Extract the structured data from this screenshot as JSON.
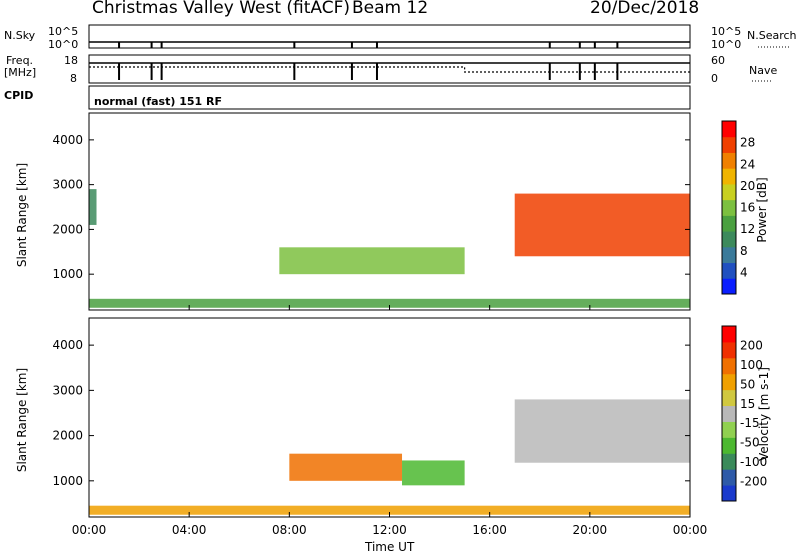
{
  "header": {
    "station": "Christmas Valley West (fitACF)",
    "beam": "Beam 12",
    "date": "20/Dec/2018"
  },
  "status_panel": {
    "nsky_label": "N.Sky",
    "nsky_ticks": [
      "10^5",
      "10^0"
    ],
    "nsearch_label": "N.Search",
    "nsearch_ticks": [
      "10^5",
      "10^0"
    ],
    "freq_label_1": "Freq.",
    "freq_label_2": "[MHz]",
    "freq_ticks": [
      "18",
      "8"
    ],
    "nave_label": "Nave",
    "nave_ticks": [
      "60",
      "0"
    ],
    "cpid_label": "CPID",
    "cpid_text": "normal (fast) 151 RF"
  },
  "colors": {
    "power_scale": [
      "#0a1eff",
      "#2050c0",
      "#3a7a9a",
      "#3c8a5c",
      "#4aa040",
      "#7cc040",
      "#c8d020",
      "#f0b400",
      "#f08000",
      "#f04000",
      "#ff0000"
    ],
    "velocity_scale": [
      "#1a3acc",
      "#2e5aa8",
      "#3a8a5a",
      "#4cb830",
      "#90d050",
      "#b8b8b8",
      "#d0c840",
      "#f0a000",
      "#f07000",
      "#f03000",
      "#ff0000"
    ]
  },
  "chart_data": [
    {
      "type": "heatmap",
      "name": "power",
      "ylabel": "Slant Range [km]",
      "x_ticks": [
        "00:00",
        "04:00",
        "08:00",
        "12:00",
        "16:00",
        "20:00",
        "00:00"
      ],
      "y_ticks": [
        1000,
        2000,
        3000,
        4000
      ],
      "ylim": [
        200,
        4600
      ],
      "xlim_hours": [
        0,
        24
      ],
      "colorbar_label": "Power [dB]",
      "colorbar_ticks": [
        4,
        8,
        12,
        16,
        20,
        24,
        28
      ],
      "colorbar_range": [
        0,
        32
      ],
      "regions": [
        {
          "t0": 0.0,
          "t1": 24.0,
          "r0": 250,
          "r1": 450,
          "level": 0.35
        },
        {
          "t0": 7.6,
          "t1": 15.0,
          "r0": 1000,
          "r1": 1600,
          "level": 0.45
        },
        {
          "t0": 17.0,
          "t1": 24.0,
          "r0": 1400,
          "r1": 2800,
          "level": 0.85
        },
        {
          "t0": 0.0,
          "t1": 0.3,
          "r0": 2100,
          "r1": 2900,
          "level": 0.3
        }
      ]
    },
    {
      "type": "heatmap",
      "name": "velocity",
      "ylabel": "Slant Range [km]",
      "xlabel": "Time UT",
      "x_ticks": [
        "00:00",
        "04:00",
        "08:00",
        "12:00",
        "16:00",
        "20:00",
        "00:00"
      ],
      "y_ticks": [
        1000,
        2000,
        3000,
        4000
      ],
      "ylim": [
        200,
        4600
      ],
      "xlim_hours": [
        0,
        24
      ],
      "colorbar_label": "Velocity [m s-1]",
      "colorbar_ticks": [
        200,
        100,
        50,
        15,
        -15,
        -50,
        -100,
        -200
      ],
      "regions": [
        {
          "t0": 0.0,
          "t1": 24.0,
          "r0": 250,
          "r1": 450,
          "level": 0.65
        },
        {
          "t0": 8.0,
          "t1": 12.5,
          "r0": 1000,
          "r1": 1600,
          "level": 0.8
        },
        {
          "t0": 12.5,
          "t1": 15.0,
          "r0": 900,
          "r1": 1450,
          "level": 0.3
        },
        {
          "t0": 17.0,
          "t1": 24.0,
          "r0": 1400,
          "r1": 2800,
          "level": 0.5
        }
      ]
    }
  ]
}
